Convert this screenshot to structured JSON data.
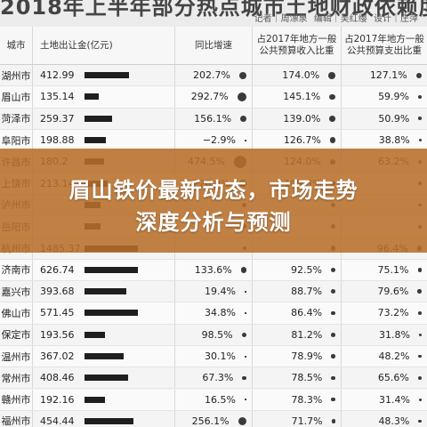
{
  "banner": {
    "title_partial": "2018年上半年部分热点城市土地财政依赖度",
    "credits": [
      "记者｜周漂泉",
      "编辑｜吴红缨",
      "设计｜庄萍"
    ]
  },
  "table": {
    "headers": {
      "city": "城市",
      "land": "土地出让金(亿元)",
      "yoy": "同比增速",
      "income": [
        "占2017年地方一般",
        "公共预算收入比重"
      ],
      "expense": [
        "占2017年地方一般",
        "公共预算支出比重"
      ]
    },
    "rows": [
      {
        "city": "湖州市",
        "land": "412.99",
        "land_val": 412.99,
        "yoy": "202.7%",
        "yoy_val": 202.7,
        "income": "174.0%",
        "income_val": 174.0,
        "expense": "127.1%",
        "expense_val": 127.1
      },
      {
        "city": "眉山市",
        "land": "135.14",
        "land_val": 135.14,
        "yoy": "292.7%",
        "yoy_val": 292.7,
        "income": "145.1%",
        "income_val": 145.1,
        "expense": "59.9%",
        "expense_val": 59.9
      },
      {
        "city": "菏泽市",
        "land": "259.37",
        "land_val": 259.37,
        "yoy": "156.1%",
        "yoy_val": 156.1,
        "income": "139.0%",
        "income_val": 139.0,
        "expense": "50.9%",
        "expense_val": 50.9
      },
      {
        "city": "阜阳市",
        "land": "198.88",
        "land_val": 198.88,
        "yoy": "−2.9%",
        "yoy_val": -2.9,
        "income": "126.7%",
        "income_val": 126.7,
        "expense": "38.8%",
        "expense_val": 38.8
      },
      {
        "city": "许昌市",
        "land": "180.2",
        "land_val": 180.2,
        "yoy": "474.5%",
        "yoy_val": 474.5,
        "income": "124.0%",
        "income_val": 124.0,
        "expense": "63.2%",
        "expense_val": 63.2
      },
      {
        "city": "上饶市",
        "land": "213.14",
        "land_val": 213.14,
        "yoy": "220.0%",
        "yoy_val": 220.0,
        "income": "109.3%",
        "income_val": 109.3,
        "expense": "",
        "expense_val": 60
      },
      {
        "city": "泸州市",
        "land": "",
        "land_val": 150,
        "yoy": "",
        "yoy_val": 100,
        "income": "",
        "income_val": 100,
        "expense": "",
        "expense_val": 50
      },
      {
        "city": "岳阳市",
        "land": "",
        "land_val": 150,
        "yoy": "",
        "yoy_val": 100,
        "income": "",
        "income_val": 100,
        "expense": "",
        "expense_val": 50
      },
      {
        "city": "杭州市",
        "land": "1485.37",
        "land_val": 1485.37,
        "yoy": "",
        "yoy_val": 60,
        "income": "",
        "income_val": 95,
        "expense": "96.4%",
        "expense_val": 96.4
      },
      {
        "city": "济南市",
        "land": "626.74",
        "land_val": 626.74,
        "yoy": "133.6%",
        "yoy_val": 133.6,
        "income": "92.5%",
        "income_val": 92.5,
        "expense": "75.1%",
        "expense_val": 75.1
      },
      {
        "city": "嘉兴市",
        "land": "393.68",
        "land_val": 393.68,
        "yoy": "19.4%",
        "yoy_val": 19.4,
        "income": "88.7%",
        "income_val": 88.7,
        "expense": "79.6%",
        "expense_val": 79.6
      },
      {
        "city": "佛山市",
        "land": "571.45",
        "land_val": 571.45,
        "yoy": "34.8%",
        "yoy_val": 34.8,
        "income": "86.4%",
        "income_val": 86.4,
        "expense": "73.2%",
        "expense_val": 73.2
      },
      {
        "city": "保定市",
        "land": "193.56",
        "land_val": 193.56,
        "yoy": "98.5%",
        "yoy_val": 98.5,
        "income": "81.2%",
        "income_val": 81.2,
        "expense": "31.8%",
        "expense_val": 31.8
      },
      {
        "city": "温州市",
        "land": "367.02",
        "land_val": 367.02,
        "yoy": "30.1%",
        "yoy_val": 30.1,
        "income": "78.9%",
        "income_val": 78.9,
        "expense": "48.2%",
        "expense_val": 48.2
      },
      {
        "city": "常州市",
        "land": "408.46",
        "land_val": 408.46,
        "yoy": "67.3%",
        "yoy_val": 67.3,
        "income": "78.5%",
        "income_val": 78.5,
        "expense": "65.6%",
        "expense_val": 65.6
      },
      {
        "city": "赣州市",
        "land": "192.16",
        "land_val": 192.16,
        "yoy": "16.5%",
        "yoy_val": 16.5,
        "income": "78.3%",
        "income_val": 78.3,
        "expense": "31.4%",
        "expense_val": 31.4
      },
      {
        "city": "福州市",
        "land": "454.44",
        "land_val": 454.44,
        "yoy": "256.1%",
        "yoy_val": 256.1,
        "income": "71.7%",
        "income_val": 71.7,
        "expense": "48.3%",
        "expense_val": 48.3
      }
    ]
  },
  "overlay": {
    "headline": [
      "眉山铁价最新动态，市场走势",
      "深度分析与预测"
    ]
  }
}
